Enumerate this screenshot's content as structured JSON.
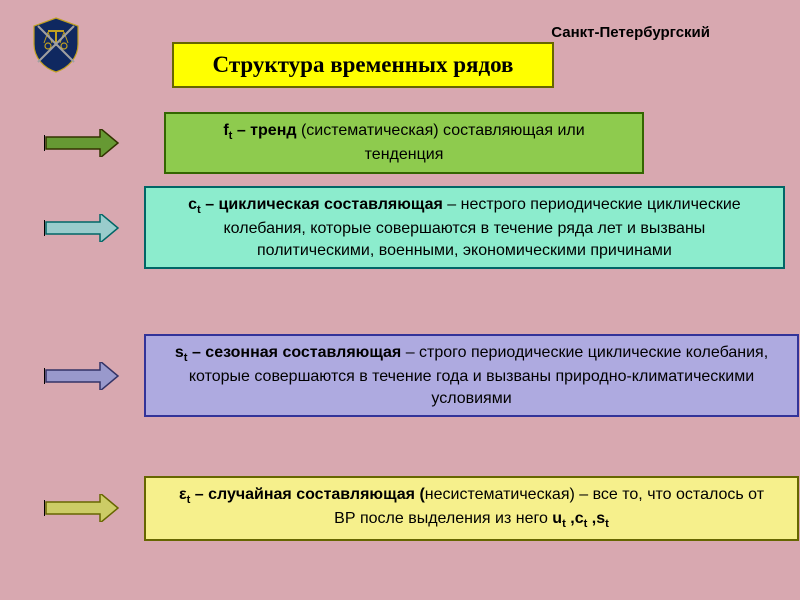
{
  "header": {
    "subtitle": "Санкт-Петербургский",
    "title": "Структура временных рядов",
    "title_bg": "#ffff00",
    "title_border": "#666600",
    "title_fontsize": 23
  },
  "background_color": "#d8a8b0",
  "logo": {
    "primary_color": "#0f2860",
    "accent_color": "#c0a020",
    "blade_color": "#a0a0a0"
  },
  "items": [
    {
      "symbol_html": "f<sub>t</sub>",
      "label": "тренд",
      "desc_html": " (систематическая) составляющая или тенденция",
      "box_bg": "#8ecb4e",
      "box_border": "#336600",
      "arrow_fill": "#669933",
      "arrow_border": "#333300",
      "box_width_pct": 78
    },
    {
      "symbol_html": "c<sub>t</sub>",
      "label": "циклическая составляющая",
      "desc_html": " – нестрого периодические циклические колебания, которые совершаются в течение ряда лет и вызваны политическими, военными, экономическими причинами",
      "box_bg": "#8ceccd",
      "box_border": "#006666",
      "arrow_fill": "#99cccc",
      "arrow_border": "#006666",
      "box_width_pct": 90
    },
    {
      "symbol_html": "s<sub>t</sub>",
      "label": "сезонная составляющая",
      "desc_html": " – строго периодические циклические колебания, которые совершаются в течение года и вызваны природно-климатическими условиями",
      "box_bg": "#aeaae0",
      "box_border": "#333399",
      "arrow_fill": "#9999cc",
      "arrow_border": "#333366",
      "box_width_pct": 92
    },
    {
      "symbol_html": "ε<sub>t</sub>",
      "label": "случайная составляющая (",
      "desc_html": "несистематическая) – все то, что осталось от ВР после выделения из него <b>u<sub>t</sub> ,c<sub>t</sub> ,s<sub>t</sub></b>",
      "box_bg": "#f6f08c",
      "box_border": "#666600",
      "arrow_fill": "#cccc66",
      "arrow_border": "#666600",
      "box_width_pct": 92
    }
  ],
  "arrow": {
    "length": 74,
    "head": 18,
    "shaft_h": 12
  }
}
